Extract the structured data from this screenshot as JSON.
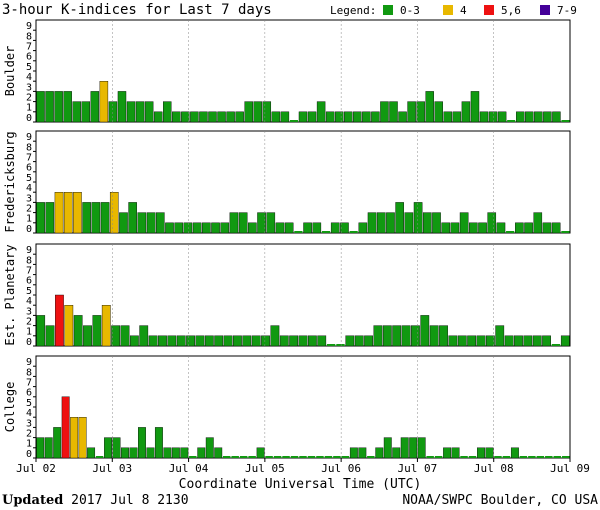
{
  "chart_data": {
    "type": "bar",
    "title": "3-hour K-indices for Last 7 days",
    "legend_label": "Legend:",
    "legend": [
      {
        "label": "0-3",
        "color": "#119911"
      },
      {
        "label": "4",
        "color": "#e8b800"
      },
      {
        "label": "5,6",
        "color": "#ee1111"
      },
      {
        "label": "7-9",
        "color": "#440099"
      }
    ],
    "ylim": [
      0,
      9
    ],
    "yticks": [
      "0",
      "1",
      "2",
      "3",
      "4",
      "5",
      "6",
      "7",
      "8",
      "9"
    ],
    "x_ticks": [
      "Jul 02",
      "Jul 03",
      "Jul 04",
      "Jul 05",
      "Jul 06",
      "Jul 07",
      "Jul 08",
      "Jul 09"
    ],
    "xlabel": "Coordinate Universal Time (UTC)",
    "panels": [
      {
        "name": "Boulder",
        "values": [
          3,
          3,
          3,
          3,
          2,
          2,
          3,
          4,
          2,
          3,
          2,
          2,
          2,
          1,
          2,
          1,
          1,
          1,
          1,
          1,
          1,
          1,
          1,
          2,
          2,
          2,
          1,
          1,
          0,
          1,
          1,
          2,
          1,
          1,
          1,
          1,
          1,
          1,
          2,
          2,
          1,
          2,
          2,
          3,
          2,
          1,
          1,
          2,
          3,
          1,
          1,
          1,
          0,
          1,
          1,
          1,
          1,
          1,
          0
        ]
      },
      {
        "name": "Fredericksburg",
        "values": [
          3,
          3,
          4,
          4,
          4,
          3,
          3,
          3,
          4,
          2,
          3,
          2,
          2,
          2,
          1,
          1,
          1,
          1,
          1,
          1,
          1,
          2,
          2,
          1,
          2,
          2,
          1,
          1,
          0,
          1,
          1,
          0,
          1,
          1,
          0,
          1,
          2,
          2,
          2,
          3,
          2,
          3,
          2,
          2,
          1,
          1,
          2,
          1,
          1,
          2,
          1,
          0,
          1,
          1,
          2,
          1,
          1,
          0
        ]
      },
      {
        "name": "Est. Planetary",
        "values": [
          3,
          2,
          5,
          4,
          3,
          2,
          3,
          4,
          2,
          2,
          1,
          2,
          1,
          1,
          1,
          1,
          1,
          1,
          1,
          1,
          1,
          1,
          1,
          1,
          1,
          2,
          1,
          1,
          1,
          1,
          1,
          0,
          0,
          1,
          1,
          1,
          2,
          2,
          2,
          2,
          2,
          3,
          2,
          2,
          1,
          1,
          1,
          1,
          1,
          2,
          1,
          1,
          1,
          1,
          1,
          0,
          1
        ]
      },
      {
        "name": "College",
        "values": [
          2,
          2,
          3,
          6,
          4,
          4,
          1,
          0,
          2,
          2,
          1,
          1,
          3,
          1,
          3,
          1,
          1,
          1,
          0,
          1,
          2,
          1,
          0,
          0,
          0,
          0,
          1,
          0,
          0,
          0,
          0,
          0,
          0,
          0,
          0,
          0,
          0,
          1,
          1,
          0,
          1,
          2,
          1,
          2,
          2,
          2,
          0,
          0,
          1,
          1,
          0,
          0,
          1,
          1,
          0,
          0,
          1,
          0,
          0,
          0,
          0,
          0,
          0
        ]
      }
    ]
  },
  "footer": {
    "updated_label": "Updated",
    "updated_value": " 2017 Jul  8 2130",
    "credit": "NOAA/SWPC Boulder, CO USA"
  }
}
